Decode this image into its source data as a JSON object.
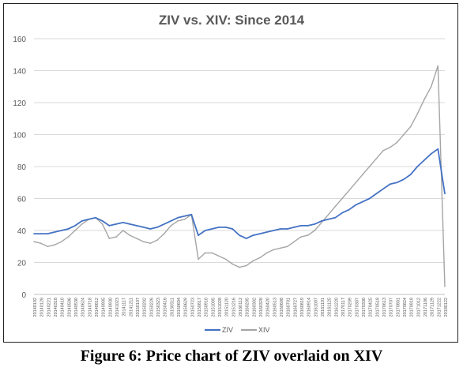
{
  "caption": "Figure 6: Price chart of ZIV overlaid on XIV",
  "chart_data": {
    "type": "line",
    "title": "ZIV vs. XIV: Since 2014",
    "xlabel": "",
    "ylabel": "",
    "ylim": [
      0,
      160
    ],
    "yticks": [
      0,
      20,
      40,
      60,
      80,
      100,
      120,
      140,
      160
    ],
    "grid": "horizontal",
    "legend_position": "bottom-center",
    "colors": {
      "ZIV": "#4472C4",
      "XIV": "#A5A5A5",
      "grid": "#D9D9D9",
      "axis": "#BFBFBF",
      "text": "#595959"
    },
    "xtick_labels": [
      "20140102",
      "20140128",
      "20140221",
      "20140318",
      "20140410",
      "20140506",
      "20140530",
      "20140624",
      "20140718",
      "20140812",
      "20140905",
      "20140930",
      "20141023",
      "20141117",
      "20141211",
      "20150107",
      "20150202",
      "20150226",
      "20150323",
      "20150416",
      "20150511",
      "20150604",
      "20150629",
      "20150723",
      "20150817",
      "20150910",
      "20151005",
      "20151028",
      "20151120",
      "20151216",
      "20160112",
      "20160205",
      "20160302",
      "20160328",
      "20160420",
      "20160513",
      "20160608",
      "20160701",
      "20160727",
      "20160819",
      "20160914",
      "20161007",
      "20161101",
      "20161125",
      "20161220",
      "20170117",
      "20170209",
      "20170307",
      "20170330",
      "20170425",
      "20170518",
      "20170613",
      "20170707",
      "20170801",
      "20170824",
      "20170919",
      "20171012",
      "20171106",
      "20171129",
      "20171222",
      "20180122"
    ],
    "series": [
      {
        "name": "ZIV",
        "values": [
          38,
          38,
          38,
          39,
          40,
          41,
          43,
          46,
          47,
          48,
          46,
          43,
          44,
          45,
          44,
          43,
          42,
          41,
          42,
          44,
          46,
          48,
          49,
          50,
          37,
          40,
          41,
          42,
          42,
          41,
          37,
          35,
          37,
          38,
          39,
          40,
          41,
          41,
          42,
          43,
          43,
          44,
          46,
          47,
          48,
          51,
          53,
          56,
          58,
          60,
          63,
          66,
          69,
          70,
          72,
          75,
          80,
          84,
          88,
          91,
          63
        ]
      },
      {
        "name": "XIV",
        "values": [
          33,
          32,
          30,
          31,
          33,
          36,
          40,
          44,
          47,
          48,
          44,
          35,
          36,
          40,
          37,
          35,
          33,
          32,
          34,
          38,
          43,
          46,
          47,
          50,
          22,
          26,
          26,
          24,
          22,
          19,
          17,
          18,
          21,
          23,
          26,
          28,
          29,
          30,
          33,
          36,
          37,
          40,
          45,
          50,
          55,
          60,
          65,
          70,
          75,
          80,
          85,
          90,
          92,
          95,
          100,
          105,
          113,
          122,
          130,
          143,
          5
        ]
      }
    ]
  }
}
